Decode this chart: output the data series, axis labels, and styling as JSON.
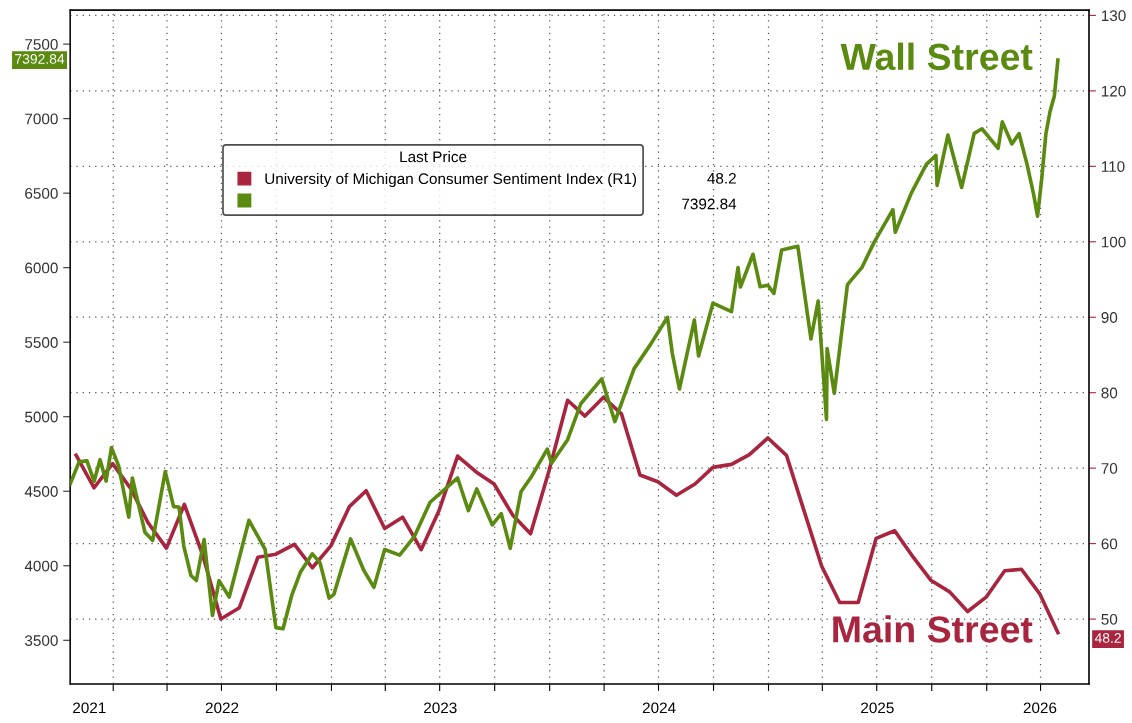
{
  "chart_data": {
    "type": "line",
    "legend_title": "Last Price",
    "legend": "top left",
    "grid": true,
    "line_style": "solid",
    "xlim": [
      "2021-10-21",
      "2026-06-21"
    ],
    "xticks": [
      {
        "value": "2021-11-22",
        "label": "2021"
      },
      {
        "value": "2022-07-02",
        "label": "2022"
      },
      {
        "value": "2023-07-02",
        "label": "2023"
      },
      {
        "value": "2024-07-02",
        "label": "2024"
      },
      {
        "value": "2025-07-02",
        "label": "2025"
      },
      {
        "value": "2026-03-31",
        "label": "2026"
      },
      {
        "value": "2022-01-01",
        "label": null
      },
      {
        "value": "2022-04-01",
        "label": null
      },
      {
        "value": "2022-07-01",
        "label": null
      },
      {
        "value": "2022-10-01",
        "label": null
      },
      {
        "value": "2023-01-01",
        "label": null
      },
      {
        "value": "2023-04-01",
        "label": null
      },
      {
        "value": "2023-07-01",
        "label": null
      },
      {
        "value": "2023-10-01",
        "label": null
      },
      {
        "value": "2024-01-01",
        "label": null
      },
      {
        "value": "2024-04-01",
        "label": null
      },
      {
        "value": "2024-07-01",
        "label": null
      },
      {
        "value": "2024-10-01",
        "label": null
      },
      {
        "value": "2025-01-01",
        "label": null
      },
      {
        "value": "2025-04-01",
        "label": null
      },
      {
        "value": "2025-07-01",
        "label": null
      },
      {
        "value": "2025-10-01",
        "label": null
      },
      {
        "value": "2026-01-01",
        "label": null
      },
      {
        "value": "2026-04-01",
        "label": null
      }
    ],
    "ylim": [
      3207,
      7728
    ],
    "yticks": [
      3500,
      4000,
      4500,
      5000,
      5500,
      6000,
      6500,
      7000,
      7500
    ],
    "y2lim": [
      41.4,
      130.7
    ],
    "y2ticks": [
      50,
      60,
      70,
      80,
      90,
      100,
      110,
      120,
      130
    ],
    "series": [
      {
        "name": "University of Michigan Consumer Sentiment Index (R1)",
        "color": "#a9253f",
        "axis": "y2",
        "x": [
          "2021-10-31",
          "2021-11-30",
          "2021-12-31",
          "2022-01-31",
          "2022-02-28",
          "2022-03-31",
          "2022-04-30",
          "2022-05-31",
          "2022-06-30",
          "2022-07-31",
          "2022-08-31",
          "2022-09-30",
          "2022-10-31",
          "2022-11-30",
          "2022-12-31",
          "2023-01-31",
          "2023-02-28",
          "2023-03-31",
          "2023-04-30",
          "2023-05-31",
          "2023-06-30",
          "2023-07-31",
          "2023-08-31",
          "2023-09-30",
          "2023-10-31",
          "2023-11-30",
          "2023-12-31",
          "2024-01-31",
          "2024-02-29",
          "2024-03-31",
          "2024-04-30",
          "2024-05-31",
          "2024-06-30",
          "2024-07-31",
          "2024-08-31",
          "2024-09-30",
          "2024-10-31",
          "2024-11-30",
          "2024-12-31",
          "2025-01-31",
          "2025-02-28",
          "2025-03-31",
          "2025-04-30",
          "2025-05-31",
          "2025-06-30",
          "2025-07-31",
          "2025-08-31",
          "2025-09-30",
          "2025-10-31",
          "2025-11-30",
          "2025-12-31",
          "2026-01-31",
          "2026-02-28",
          "2026-03-31",
          "2026-04-30"
        ],
        "values": [
          71.7,
          67.4,
          70.6,
          67.2,
          62.8,
          59.4,
          65.2,
          58.4,
          50.0,
          51.5,
          58.2,
          58.6,
          59.9,
          56.8,
          59.7,
          64.9,
          67.0,
          62.0,
          63.5,
          59.2,
          64.4,
          71.6,
          69.5,
          67.9,
          63.8,
          61.3,
          69.7,
          79.0,
          76.9,
          79.4,
          77.2,
          69.1,
          68.2,
          66.4,
          67.9,
          70.1,
          70.5,
          71.8,
          74.0,
          71.7,
          64.7,
          57.0,
          52.2,
          52.2,
          60.7,
          61.7,
          58.2,
          55.1,
          53.6,
          51.0,
          52.9,
          56.4,
          56.6,
          53.3,
          48.2
        ]
      },
      {
        "color": "#5a8a0f",
        "x": [
          "2021-10-21",
          "2021-11-05",
          "2021-11-18",
          "2021-11-30",
          "2021-12-10",
          "2021-12-20",
          "2021-12-29",
          "2022-01-10",
          "2022-01-27",
          "2022-02-02",
          "2022-02-23",
          "2022-03-08",
          "2022-03-29",
          "2022-04-12",
          "2022-04-21",
          "2022-04-29",
          "2022-05-11",
          "2022-05-20",
          "2022-06-02",
          "2022-06-16",
          "2022-06-27",
          "2022-07-14",
          "2022-08-16",
          "2022-09-12",
          "2022-09-30",
          "2022-10-12",
          "2022-10-27",
          "2022-11-10",
          "2022-11-30",
          "2022-12-13",
          "2022-12-28",
          "2023-01-05",
          "2023-02-02",
          "2023-02-24",
          "2023-03-13",
          "2023-03-31",
          "2023-04-25",
          "2023-05-19",
          "2023-06-15",
          "2023-07-31",
          "2023-08-18",
          "2023-09-01",
          "2023-09-27",
          "2023-10-12",
          "2023-10-27",
          "2023-11-14",
          "2023-12-01",
          "2023-12-28",
          "2024-01-04",
          "2024-01-31",
          "2024-02-22",
          "2024-03-28",
          "2024-04-19",
          "2024-05-21",
          "2024-06-18",
          "2024-07-16",
          "2024-07-24",
          "2024-08-05",
          "2024-08-30",
          "2024-09-06",
          "2024-09-30",
          "2024-10-31",
          "2024-11-11",
          "2024-11-15",
          "2024-12-06",
          "2024-12-18",
          "2024-12-31",
          "2025-01-10",
          "2025-01-23",
          "2025-02-19",
          "2025-03-13",
          "2025-03-25",
          "2025-04-08",
          "2025-04-09",
          "2025-04-21",
          "2025-05-13",
          "2025-06-06",
          "2025-06-27",
          "2025-07-28",
          "2025-08-01",
          "2025-08-28",
          "2025-09-22",
          "2025-10-08",
          "2025-10-10",
          "2025-10-28",
          "2025-11-20",
          "2025-12-11",
          "2025-12-24",
          "2026-01-20",
          "2026-01-27",
          "2026-02-12",
          "2026-02-24",
          "2026-03-09",
          "2026-03-20",
          "2026-03-27",
          "2026-04-03",
          "2026-04-10",
          "2026-04-17",
          "2026-04-24",
          "2026-04-30"
        ],
        "values": [
          4550,
          4697,
          4704,
          4567,
          4712,
          4568,
          4793,
          4670,
          4326,
          4589,
          4225,
          4170,
          4632,
          4397,
          4394,
          4132,
          3935,
          3901,
          4176,
          3667,
          3900,
          3790,
          4305,
          4110,
          3585,
          3577,
          3807,
          3956,
          4080,
          4019,
          3783,
          3808,
          4180,
          3970,
          3855,
          4109,
          4071,
          4192,
          4426,
          4589,
          4370,
          4516,
          4274,
          4350,
          4117,
          4496,
          4595,
          4783,
          4688,
          4846,
          5087,
          5254,
          4967,
          5321,
          5487,
          5667,
          5427,
          5186,
          5648,
          5408,
          5762,
          5705,
          6001,
          5870,
          6090,
          5872,
          5882,
          5827,
          6119,
          6144,
          5522,
          5776,
          4982,
          5457,
          5158,
          5886,
          6000,
          6173,
          6389,
          6238,
          6502,
          6693,
          6753,
          6552,
          6890,
          6538,
          6901,
          6932,
          6800,
          6978,
          6830,
          6900,
          6700,
          6500,
          6346,
          6600,
          6900,
          7050,
          7150,
          7392.84
        ]
      }
    ],
    "annotations": [
      "Main Street",
      "Wall Street",
      "48.2",
      "7392.84"
    ]
  }
}
